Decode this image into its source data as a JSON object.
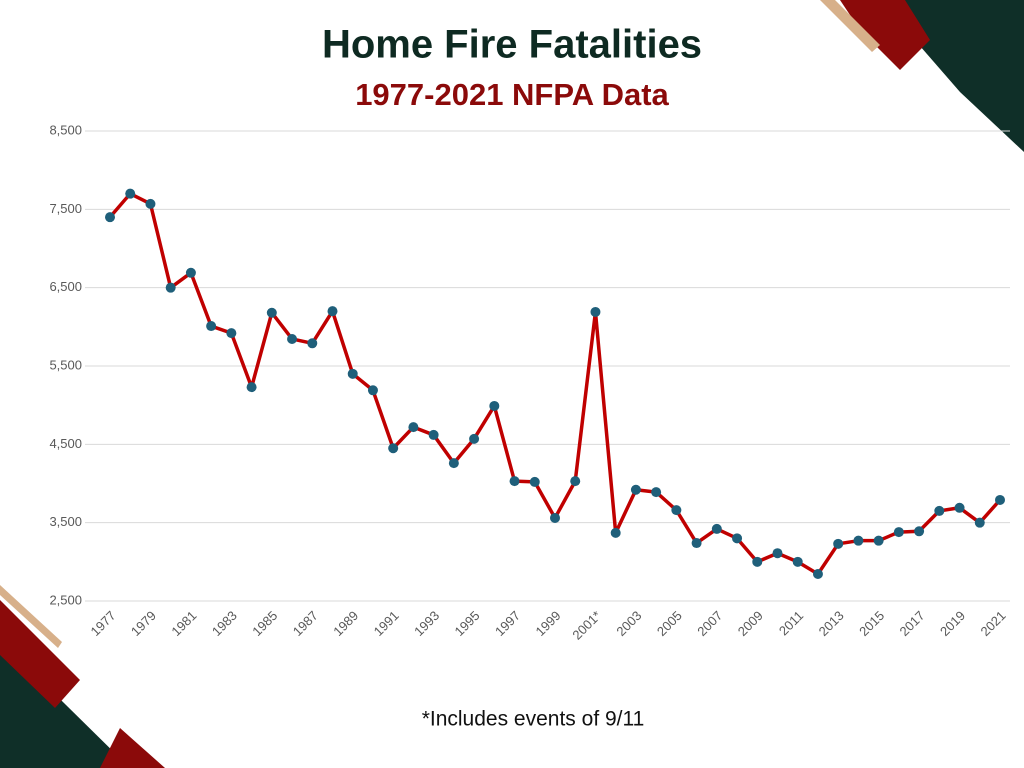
{
  "chart_data": {
    "type": "line",
    "title": "Home Fire Fatalities",
    "subtitle": "1977-2021 NFPA Data",
    "note": "*Includes events of 9/11",
    "categories": [
      "1977",
      null,
      "1979",
      null,
      "1981",
      null,
      "1983",
      null,
      "1985",
      null,
      "1987",
      null,
      "1989",
      null,
      "1991",
      null,
      "1993",
      null,
      "1995",
      null,
      "1997",
      null,
      "1999",
      null,
      "2001*",
      null,
      "2003",
      null,
      "2005",
      null,
      "2007",
      null,
      "2009",
      null,
      "2011",
      null,
      "2013",
      null,
      "2015",
      null,
      "2017",
      null,
      "2019",
      null,
      "2021"
    ],
    "values": [
      7400,
      7700,
      7570,
      6500,
      6690,
      6010,
      5920,
      5230,
      6180,
      5845,
      5790,
      6200,
      5400,
      5190,
      4450,
      4720,
      4620,
      4260,
      4570,
      4990,
      4030,
      4020,
      3560,
      4030,
      6190,
      3370,
      3920,
      3890,
      3660,
      3240,
      3420,
      3300,
      3000,
      3110,
      3000,
      2845,
      3230,
      3270,
      3270,
      3380,
      3390,
      3650,
      3690,
      3500,
      3790
    ],
    "color": "#c00000",
    "marker_color": "#1f5f7a",
    "ylim": [
      2500,
      8500
    ],
    "yticks": [
      {
        "value": 2500,
        "label": "2,500"
      },
      {
        "value": 3500,
        "label": "3,500"
      },
      {
        "value": 4500,
        "label": "4,500"
      },
      {
        "value": 5500,
        "label": "5,500"
      },
      {
        "value": 6500,
        "label": "6,500"
      },
      {
        "value": 7500,
        "label": "7,500"
      },
      {
        "value": 8500,
        "label": "8,500"
      }
    ],
    "grid": true
  }
}
